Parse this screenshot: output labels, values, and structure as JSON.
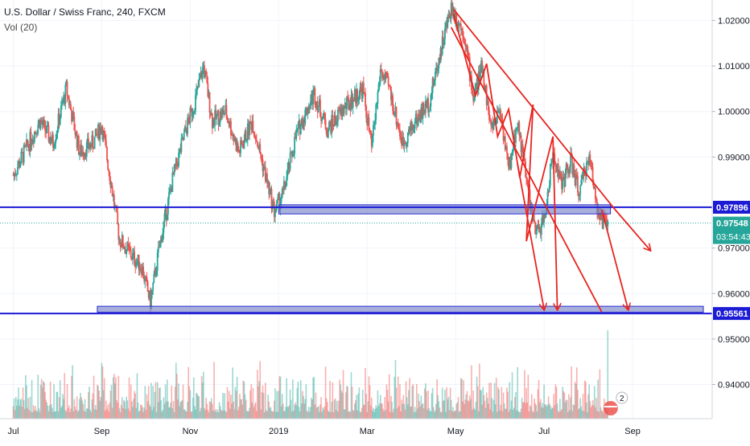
{
  "legend": {
    "symbol_line": "U.S. Dollar / Swiss Franc, 240, FXCM",
    "volume_label": "Vol (20)"
  },
  "chart_data": {
    "type": "candlestick",
    "title": "U.S. Dollar / Swiss Franc, 240, FXCM",
    "y_axis": {
      "ticks": [
        0.94,
        0.95,
        0.96,
        0.97,
        0.98,
        0.99,
        1.0,
        1.01,
        1.02
      ],
      "tick_labels": [
        "0.94000",
        "0.95000",
        "0.96000",
        "0.97000",
        "",
        "0.99000",
        "1.00000",
        "1.01000",
        "1.02000"
      ],
      "ylim": [
        0.9325,
        1.0245
      ]
    },
    "x_axis": {
      "labels": [
        "Jul",
        "Sep",
        "Nov",
        "2019",
        "Mar",
        "May",
        "Jul",
        "Sep"
      ],
      "label_months": [
        0,
        2,
        4,
        6,
        8,
        10,
        12,
        14
      ],
      "xlim_months": [
        -0.3,
        15.8
      ],
      "last_bar_month": 13.45
    },
    "price_path": [
      [
        0.0,
        0.986
      ],
      [
        0.3,
        0.992
      ],
      [
        0.6,
        0.998
      ],
      [
        0.9,
        0.993
      ],
      [
        1.2,
        1.005
      ],
      [
        1.5,
        0.991
      ],
      [
        1.8,
        0.993
      ],
      [
        2.0,
        0.997
      ],
      [
        2.2,
        0.985
      ],
      [
        2.4,
        0.972
      ],
      [
        2.7,
        0.968
      ],
      [
        2.9,
        0.966
      ],
      [
        3.1,
        0.958
      ],
      [
        3.3,
        0.97
      ],
      [
        3.6,
        0.985
      ],
      [
        3.9,
        0.996
      ],
      [
        4.1,
        1.002
      ],
      [
        4.3,
        1.01
      ],
      [
        4.5,
        0.998
      ],
      [
        4.8,
        1.0
      ],
      [
        5.1,
        0.991
      ],
      [
        5.4,
        0.998
      ],
      [
        5.7,
        0.986
      ],
      [
        5.9,
        0.978
      ],
      [
        6.1,
        0.982
      ],
      [
        6.4,
        0.995
      ],
      [
        6.8,
        1.004
      ],
      [
        7.1,
        0.996
      ],
      [
        7.5,
        1.001
      ],
      [
        7.9,
        1.005
      ],
      [
        8.1,
        0.992
      ],
      [
        8.3,
        1.009
      ],
      [
        8.5,
        1.005
      ],
      [
        8.8,
        0.993
      ],
      [
        9.1,
        0.998
      ],
      [
        9.4,
        1.002
      ],
      [
        9.7,
        1.015
      ],
      [
        9.9,
        1.023
      ],
      [
        10.2,
        1.017
      ],
      [
        10.4,
        1.003
      ],
      [
        10.6,
        1.01
      ],
      [
        10.8,
        0.996
      ],
      [
        11.0,
        1.001
      ],
      [
        11.2,
        0.987
      ],
      [
        11.4,
        0.998
      ],
      [
        11.6,
        0.985
      ],
      [
        11.8,
        0.973
      ],
      [
        12.0,
        0.976
      ],
      [
        12.2,
        0.991
      ],
      [
        12.4,
        0.984
      ],
      [
        12.6,
        0.989
      ],
      [
        12.8,
        0.982
      ],
      [
        13.0,
        0.99
      ],
      [
        13.1,
        0.986
      ],
      [
        13.25,
        0.976
      ],
      [
        13.45,
        0.9755
      ]
    ],
    "horizontal_lines": [
      {
        "value": 0.97896,
        "label": "0.97896",
        "color": "#1b1bd6"
      },
      {
        "value": 0.95561,
        "label": "0.95561",
        "color": "#1b1bd6"
      }
    ],
    "last_price": {
      "value": 0.97548,
      "label": "0.97548",
      "countdown": "03:54:43",
      "color": "#26a69a"
    },
    "zones": [
      {
        "from_month": 6.0,
        "to_month": 13.5,
        "low": 0.9775,
        "high": 0.9795
      },
      {
        "from_month": 1.9,
        "to_month": 15.6,
        "low": 0.9559,
        "high": 0.9572
      }
    ],
    "trend_lines": [
      {
        "from": [
          9.95,
          1.0225
        ],
        "to": [
          13.6,
          0.9785
        ],
        "arrow": true,
        "arrow_to": [
          14.4,
          0.9695
        ]
      },
      {
        "from": [
          9.9,
          1.0185
        ],
        "to": [
          13.3,
          0.956
        ]
      }
    ],
    "projection_arrows": [
      {
        "path": [
          [
            9.95,
            1.0215
          ],
          [
            10.45,
            1.0035
          ],
          [
            10.7,
            1.0105
          ],
          [
            10.95,
            0.9945
          ],
          [
            11.2,
            1.0005
          ],
          [
            11.45,
            0.9855
          ],
          [
            11.75,
            1.0015
          ]
        ]
      },
      {
        "path": [
          [
            11.4,
            0.9885
          ],
          [
            12.0,
            0.9565
          ]
        ],
        "arrow": true
      },
      {
        "path": [
          [
            11.75,
            1.0015
          ],
          [
            11.6,
            0.9715
          ],
          [
            12.2,
            0.9945
          ],
          [
            12.3,
            0.9565
          ]
        ],
        "arrow": true
      },
      {
        "path": [
          [
            13.3,
            0.9785
          ],
          [
            13.9,
            0.9565
          ]
        ],
        "arrow": true
      }
    ],
    "volume": {
      "max_relative": 1.0,
      "spike_month": 13.45
    },
    "badge": {
      "text": "2"
    },
    "colors": {
      "up": "#26a69a",
      "down": "#ef5350",
      "grid": "#f0f3fa",
      "axis_text": "#131722",
      "annotation": "#e8241f"
    }
  }
}
